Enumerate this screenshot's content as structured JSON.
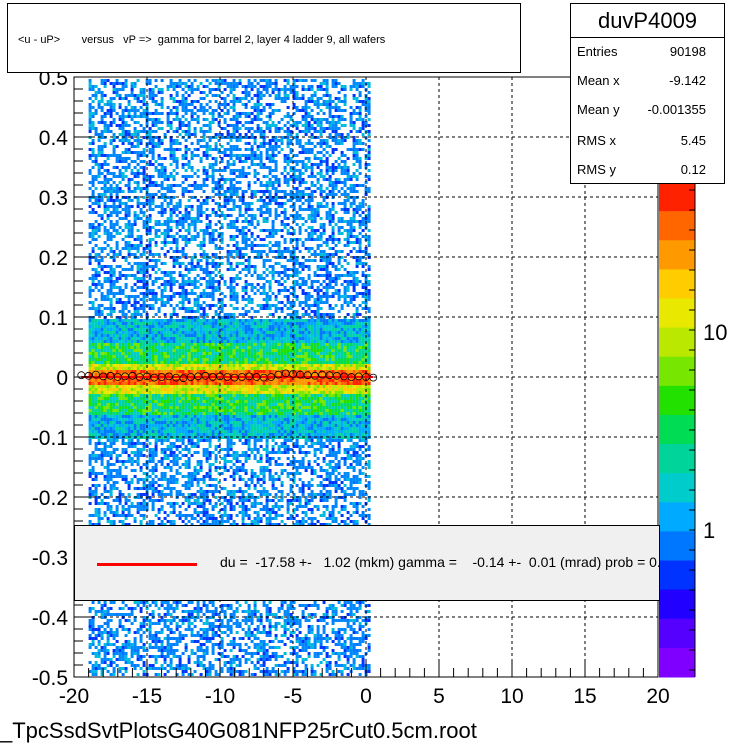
{
  "header": {
    "title": "<u - uP>       versus   vP =>  gamma for barrel 2, layer 4 ladder 9, all wafers"
  },
  "stats": {
    "name": "duvP4009",
    "rows": [
      {
        "label": "Entries",
        "value": "90198"
      },
      {
        "label": "Mean x",
        "value": "-9.142"
      },
      {
        "label": "Mean y",
        "value": "-0.001355"
      },
      {
        "label": "RMS x",
        "value": "5.45"
      },
      {
        "label": "RMS y",
        "value": "0.12"
      }
    ]
  },
  "fit": {
    "text": "du =  -17.58 +-   1.02 (mkm) gamma =    -0.14 +-  0.01 (mrad) prob = 0.",
    "line_color": "#ff0000"
  },
  "footer": {
    "filename": "_TpcSsdSvtPlotsG40G081NFP25rCut0.5cm.root"
  },
  "chart_data": {
    "type": "heatmap",
    "xlim": [
      -20,
      20
    ],
    "ylim": [
      -0.5,
      0.5
    ],
    "x_ticks": [
      -20,
      -15,
      -10,
      -5,
      0,
      5,
      10,
      15,
      20
    ],
    "y_ticks": [
      -0.5,
      -0.4,
      -0.3,
      -0.2,
      -0.1,
      0,
      0.1,
      0.2,
      0.3,
      0.4,
      0.5
    ],
    "x_tick_labels": [
      "-20",
      "-15",
      "-10",
      "-5",
      "0",
      "5",
      "10",
      "15",
      "20"
    ],
    "y_tick_labels": [
      "-0.5",
      "-0.4",
      "-0.3",
      "-0.2",
      "-0.1",
      "0",
      "0.1",
      "0.2",
      "0.3",
      "0.4",
      "0.5"
    ],
    "z_tick_labels": [
      "1",
      "10"
    ],
    "z_scale": "log",
    "grid": true,
    "populated_x_range": [
      -19,
      0.3
    ],
    "profile_points": {
      "x": [
        -19.5,
        -19,
        -18.5,
        -18,
        -17.5,
        -17,
        -16.5,
        -16,
        -15.5,
        -15,
        -14.5,
        -14,
        -13.5,
        -13,
        -12.5,
        -12,
        -11.5,
        -11,
        -10.5,
        -10,
        -9.5,
        -9,
        -8.5,
        -8,
        -7.5,
        -7,
        -6.5,
        -6,
        -5.5,
        -5,
        -4.5,
        -4,
        -3.5,
        -3,
        -2.5,
        -2,
        -1.5,
        -1,
        -0.5,
        0,
        0.5
      ],
      "y": [
        0.003,
        0.002,
        0.004,
        0.001,
        0.002,
        0.0,
        0.001,
        0.002,
        0.0,
        0.001,
        -0.001,
        0.0,
        0.001,
        -0.001,
        -0.002,
        0.0,
        0.001,
        0.002,
        0.0,
        0.001,
        0.0,
        -0.001,
        0.0,
        0.001,
        0.0,
        -0.001,
        0.0,
        0.004,
        0.006,
        0.005,
        0.004,
        0.003,
        0.002,
        0.004,
        0.003,
        0.002,
        0.001,
        0.0,
        0.001,
        0.0,
        -0.001
      ]
    },
    "fit_line_color": "#ff0000"
  }
}
